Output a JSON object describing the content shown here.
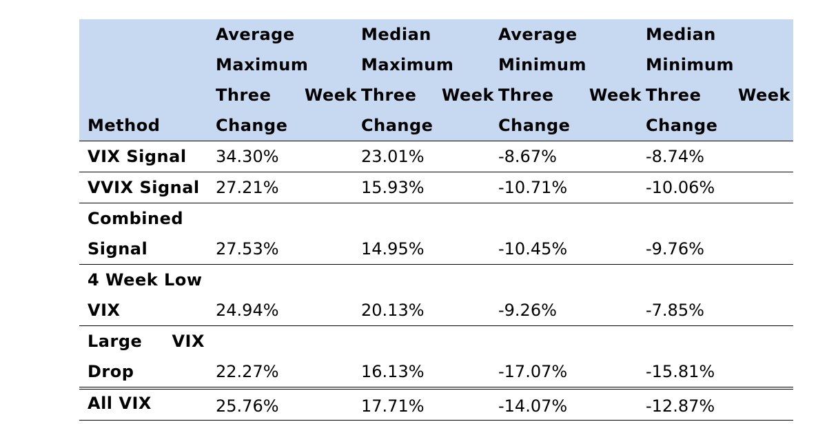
{
  "table": {
    "headers": [
      {
        "lines": [
          "Method"
        ]
      },
      {
        "lines": [
          "Average",
          "Maximum",
          "Three Week",
          "Change"
        ]
      },
      {
        "lines": [
          "Median",
          "Maximum",
          "Three Week",
          "Change"
        ]
      },
      {
        "lines": [
          "Average",
          "Minimum",
          "Three Week",
          "Change"
        ]
      },
      {
        "lines": [
          "Median",
          "Minimum",
          "Three Week",
          "Change"
        ]
      }
    ],
    "rows": [
      {
        "method": [
          "VIX Signal"
        ],
        "values": [
          "34.30%",
          "23.01%",
          "-8.67%",
          "-8.74%"
        ]
      },
      {
        "method": [
          "VVIX Signal"
        ],
        "values": [
          "27.21%",
          "15.93%",
          "-10.71%",
          "-10.06%"
        ]
      },
      {
        "method": [
          "Combined",
          "Signal"
        ],
        "values": [
          "27.53%",
          "14.95%",
          "-10.45%",
          "-9.76%"
        ]
      },
      {
        "method": [
          "4 Week Low",
          "VIX"
        ],
        "values": [
          "24.94%",
          "20.13%",
          "-9.26%",
          "-7.85%"
        ]
      },
      {
        "method": [
          "Large VIX",
          "Drop"
        ],
        "values": [
          "22.27%",
          "16.13%",
          "-17.07%",
          "-15.81%"
        ]
      },
      {
        "method": [
          "All VIX"
        ],
        "values": [
          "25.76%",
          "17.71%",
          "-14.07%",
          "-12.87%"
        ]
      }
    ]
  }
}
